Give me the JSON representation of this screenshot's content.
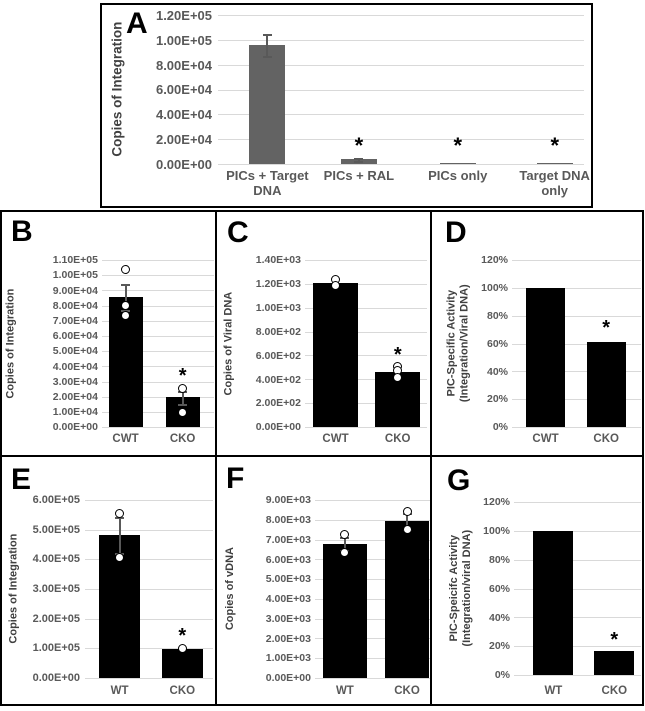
{
  "colors": {
    "bar_gray": "#636363",
    "bar_black": "#000000",
    "axis_text": "#595959",
    "axis_title_text": "#404040",
    "grid": "#d9d9d9",
    "error_bar": "#595959",
    "panel_border": "#000000",
    "significance_marker": "#000000"
  },
  "chart_data": [
    {
      "id": "A",
      "type": "bar",
      "ylabel_lines": [
        "Copies of Integration"
      ],
      "ymax": 120000,
      "yticks": [
        {
          "v": 120000,
          "label": "1.20E+05"
        },
        {
          "v": 100000,
          "label": "1.00E+05"
        },
        {
          "v": 80000,
          "label": "8.00E+04"
        },
        {
          "v": 60000,
          "label": "6.00E+04"
        },
        {
          "v": 40000,
          "label": "4.00E+04"
        },
        {
          "v": 20000,
          "label": "2.00E+04"
        },
        {
          "v": 0,
          "label": "0.00E+00"
        }
      ],
      "categories": [
        [
          "PICs + Target",
          "DNA"
        ],
        [
          "PICs + RAL"
        ],
        [
          "PICs only"
        ],
        [
          "Target DNA",
          "only"
        ]
      ],
      "bar_color": "#636363",
      "bars": [
        {
          "value": 96000,
          "err_hi": 105000,
          "err_lo": 87000,
          "points": [],
          "star": null
        },
        {
          "value": 4000,
          "err_hi": 5200,
          "err_lo": 2800,
          "points": [],
          "star": 17000
        },
        {
          "value": 500,
          "err_hi": null,
          "err_lo": null,
          "points": [],
          "star": 17000
        },
        {
          "value": 1000,
          "err_hi": null,
          "err_lo": null,
          "points": [],
          "star": 17000
        }
      ]
    },
    {
      "id": "B",
      "type": "bar",
      "ylabel_lines": [
        "Copies of Integration"
      ],
      "ymax": 110000,
      "yticks": [
        {
          "v": 110000,
          "label": "1.10E+05"
        },
        {
          "v": 100000,
          "label": "1.00E+05"
        },
        {
          "v": 90000,
          "label": "9.00E+04"
        },
        {
          "v": 80000,
          "label": "8.00E+04"
        },
        {
          "v": 70000,
          "label": "7.00E+04"
        },
        {
          "v": 60000,
          "label": "6.00E+04"
        },
        {
          "v": 50000,
          "label": "5.00E+04"
        },
        {
          "v": 40000,
          "label": "4.00E+04"
        },
        {
          "v": 30000,
          "label": "3.00E+04"
        },
        {
          "v": 20000,
          "label": "2.00E+04"
        },
        {
          "v": 10000,
          "label": "1.00E+04"
        },
        {
          "v": 0,
          "label": "0.00E+00"
        }
      ],
      "categories": [
        [
          "CWT"
        ],
        [
          "CKO"
        ]
      ],
      "bar_color": "#000000",
      "bars": [
        {
          "value": 85500,
          "err_hi": 94000,
          "err_lo": 77000,
          "points": [
            104000,
            80000,
            73500
          ],
          "star": null
        },
        {
          "value": 19500,
          "err_hi": 24000,
          "err_lo": 15000,
          "points": [
            25500,
            9500
          ],
          "star": 35000
        }
      ]
    },
    {
      "id": "C",
      "type": "bar",
      "ylabel_lines": [
        "Copies of Viral DNA"
      ],
      "ymax": 1400,
      "yticks": [
        {
          "v": 1400,
          "label": "1.40E+03"
        },
        {
          "v": 1200,
          "label": "1.20E+03"
        },
        {
          "v": 1000,
          "label": "1.00E+03"
        },
        {
          "v": 800,
          "label": "8.00E+02"
        },
        {
          "v": 600,
          "label": "6.00E+02"
        },
        {
          "v": 400,
          "label": "4.00E+02"
        },
        {
          "v": 200,
          "label": "2.00E+02"
        },
        {
          "v": 0,
          "label": "0.00E+00"
        }
      ],
      "categories": [
        [
          "CWT"
        ],
        [
          "CKO"
        ]
      ],
      "bar_color": "#000000",
      "bars": [
        {
          "value": 1210,
          "err_hi": null,
          "err_lo": null,
          "points": [
            1240,
            1185
          ],
          "star": null
        },
        {
          "value": 460,
          "err_hi": null,
          "err_lo": null,
          "points": [
            505,
            470,
            415
          ],
          "star": 620
        }
      ]
    },
    {
      "id": "D",
      "type": "bar",
      "ylabel_lines": [
        "PIC-Specific Activity",
        "(Integration/Viral DNA)"
      ],
      "ymax": 120,
      "yticks": [
        {
          "v": 120,
          "label": "120%"
        },
        {
          "v": 100,
          "label": "100%"
        },
        {
          "v": 80,
          "label": "80%"
        },
        {
          "v": 60,
          "label": "60%"
        },
        {
          "v": 40,
          "label": "40%"
        },
        {
          "v": 20,
          "label": "20%"
        },
        {
          "v": 0,
          "label": "0%"
        }
      ],
      "categories": [
        [
          "CWT"
        ],
        [
          "CKO"
        ]
      ],
      "bar_color": "#000000",
      "bars": [
        {
          "value": 100,
          "err_hi": null,
          "err_lo": null,
          "points": [],
          "star": null
        },
        {
          "value": 61,
          "err_hi": null,
          "err_lo": null,
          "points": [],
          "star": 73
        }
      ]
    },
    {
      "id": "E",
      "type": "bar",
      "ylabel_lines": [
        "Copies of Integration"
      ],
      "ymax": 600000,
      "yticks": [
        {
          "v": 600000,
          "label": "6.00E+05"
        },
        {
          "v": 500000,
          "label": "5.00E+05"
        },
        {
          "v": 400000,
          "label": "4.00E+05"
        },
        {
          "v": 300000,
          "label": "3.00E+05"
        },
        {
          "v": 200000,
          "label": "2.00E+05"
        },
        {
          "v": 100000,
          "label": "1.00E+05"
        },
        {
          "v": 0,
          "label": "0.00E+00"
        }
      ],
      "categories": [
        [
          "WT"
        ],
        [
          "CKO"
        ]
      ],
      "bar_color": "#000000",
      "bars": [
        {
          "value": 482000,
          "err_hi": 542000,
          "err_lo": 422000,
          "points": [
            555000,
            405000
          ],
          "star": null
        },
        {
          "value": 97000,
          "err_hi": null,
          "err_lo": null,
          "points": [
            98000
          ],
          "star": 150000
        }
      ]
    },
    {
      "id": "F",
      "type": "bar",
      "ylabel_lines": [
        "Copies of vDNA"
      ],
      "ymax": 9000,
      "yticks": [
        {
          "v": 9000,
          "label": "9.00E+03"
        },
        {
          "v": 8000,
          "label": "8.00E+03"
        },
        {
          "v": 7000,
          "label": "7.00E+03"
        },
        {
          "v": 6000,
          "label": "6.00E+03"
        },
        {
          "v": 5000,
          "label": "5.00E+03"
        },
        {
          "v": 4000,
          "label": "4.00E+03"
        },
        {
          "v": 3000,
          "label": "3.00E+03"
        },
        {
          "v": 2000,
          "label": "2.00E+03"
        },
        {
          "v": 1000,
          "label": "1.00E+03"
        },
        {
          "v": 0,
          "label": "0.00E+00"
        }
      ],
      "categories": [
        [
          "WT"
        ],
        [
          "CKO"
        ]
      ],
      "bar_color": "#000000",
      "bars": [
        {
          "value": 6800,
          "err_hi": 7150,
          "err_lo": 6450,
          "points": [
            7250,
            6350
          ],
          "star": null
        },
        {
          "value": 7950,
          "err_hi": 8350,
          "err_lo": 7550,
          "points": [
            8420,
            7500
          ],
          "star": null
        }
      ]
    },
    {
      "id": "G",
      "type": "bar",
      "ylabel_lines": [
        "PIC-Speicifc Activity",
        "(Integration/viral DNA)"
      ],
      "ymax": 120,
      "yticks": [
        {
          "v": 120,
          "label": "120%"
        },
        {
          "v": 100,
          "label": "100%"
        },
        {
          "v": 80,
          "label": "80%"
        },
        {
          "v": 60,
          "label": "60%"
        },
        {
          "v": 40,
          "label": "40%"
        },
        {
          "v": 20,
          "label": "20%"
        },
        {
          "v": 0,
          "label": "0%"
        }
      ],
      "categories": [
        [
          "WT"
        ],
        [
          "CKO"
        ]
      ],
      "bar_color": "#000000",
      "bars": [
        {
          "value": 100,
          "err_hi": null,
          "err_lo": null,
          "points": [],
          "star": null
        },
        {
          "value": 17,
          "err_hi": null,
          "err_lo": null,
          "points": [],
          "star": 26
        }
      ]
    }
  ]
}
